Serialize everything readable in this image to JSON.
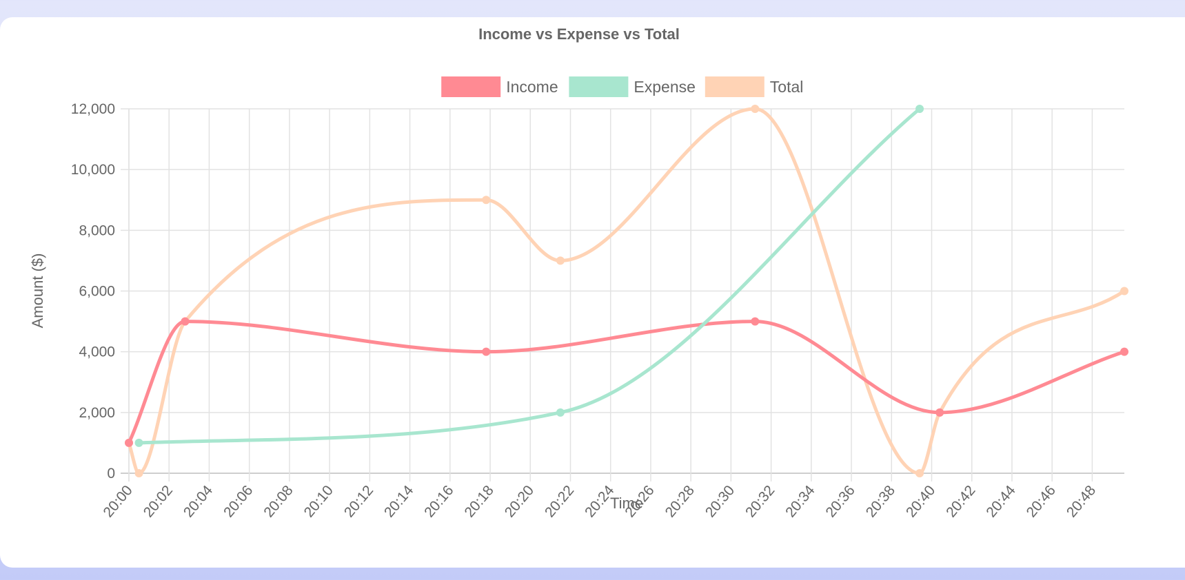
{
  "chart_data": {
    "type": "line",
    "title": "Income vs Expense vs Total",
    "xlabel": "Time",
    "ylabel": "Amount ($)",
    "ylim": [
      0,
      12000
    ],
    "y_ticks": [
      "0",
      "2,000",
      "4,000",
      "6,000",
      "8,000",
      "10,000",
      "12,000"
    ],
    "x_range_minutes": [
      0,
      49.6
    ],
    "x_ticks": [
      "20:00",
      "20:02",
      "20:04",
      "20:06",
      "20:08",
      "20:10",
      "20:12",
      "20:14",
      "20:16",
      "20:18",
      "20:20",
      "20:22",
      "20:24",
      "20:26",
      "20:28",
      "20:30",
      "20:32",
      "20:34",
      "20:36",
      "20:38",
      "20:40",
      "20:42",
      "20:44",
      "20:46",
      "20:48"
    ],
    "legend_position": "top",
    "grid": true,
    "series": [
      {
        "name": "Income",
        "color": "#ff8a93",
        "points": [
          {
            "x": "20:00:00",
            "y": 1000
          },
          {
            "x": "20:02:48",
            "y": 5000
          },
          {
            "x": "20:17:48",
            "y": 4000
          },
          {
            "x": "20:31:12",
            "y": 5000
          },
          {
            "x": "20:40:24",
            "y": 2000
          },
          {
            "x": "20:49:36",
            "y": 4000
          }
        ]
      },
      {
        "name": "Expense",
        "color": "#a8e6cf",
        "points": [
          {
            "x": "20:00:30",
            "y": 1000
          },
          {
            "x": "20:21:30",
            "y": 2000
          },
          {
            "x": "20:39:24",
            "y": 12000
          }
        ]
      },
      {
        "name": "Total",
        "color": "#ffd3b5",
        "points": [
          {
            "x": "20:00:00",
            "y": 1000
          },
          {
            "x": "20:00:30",
            "y": 0
          },
          {
            "x": "20:02:48",
            "y": 5000
          },
          {
            "x": "20:17:48",
            "y": 9000
          },
          {
            "x": "20:21:30",
            "y": 7000
          },
          {
            "x": "20:31:12",
            "y": 12000
          },
          {
            "x": "20:39:24",
            "y": 0
          },
          {
            "x": "20:40:24",
            "y": 2000
          },
          {
            "x": "20:49:36",
            "y": 6000
          }
        ]
      }
    ]
  }
}
